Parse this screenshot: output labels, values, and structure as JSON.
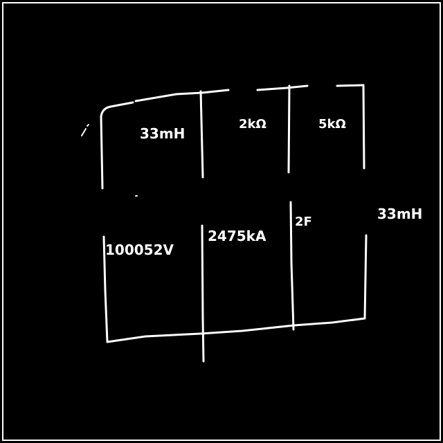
{
  "colors": {
    "background": "#000000",
    "ink": "#ffffff"
  },
  "circuit": {
    "components": {
      "top_left": "33mH",
      "top_middle": "2kΩ",
      "top_right": "5kΩ",
      "bottom_left": "100052V",
      "bottom_middle": "2475kA",
      "bottom_right": "2F",
      "right_outside": "33mH"
    }
  }
}
